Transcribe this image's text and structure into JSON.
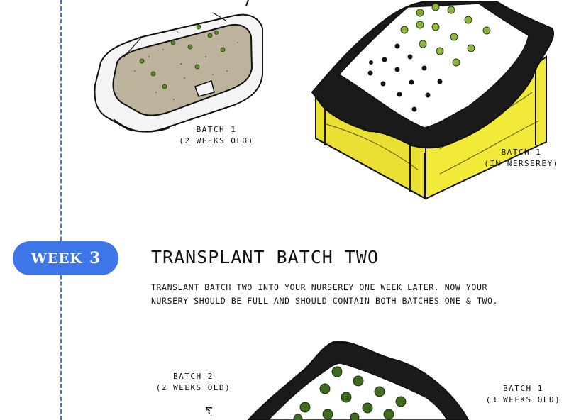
{
  "week": {
    "label": "WEEK",
    "number": "3"
  },
  "section": {
    "title": "TRANSPLANT BATCH TWO",
    "description_line1": "TRANSLANT BATCH TWO INTO YOUR NURSEREY ONE WEEK LATER. NOW YOUR",
    "description_line2": "NURSERY SHOULD BE FULL AND SHOULD CONTAIN BOTH BATCHES ONE & TWO."
  },
  "top_tray_label": {
    "line1": "BATCH 1",
    "line2": "(2 WEEKS OLD)"
  },
  "top_nursery_label": {
    "line1": "BATCH 1",
    "line2": "(IN NERSEREY)"
  },
  "bottom_left_label": {
    "line1": "BATCH 2",
    "line2": "(2 WEEKS OLD)"
  },
  "bottom_right_label": {
    "line1": "BATCH 1",
    "line2": "(3 WEEKS OLD)"
  },
  "colors": {
    "accent": "#3e76e8",
    "timeline": "#4a76d8",
    "soil": "#bdb39c",
    "wood": "#f2ea38",
    "liner": "#1a1a1a",
    "leaf": "#8fb33a"
  }
}
